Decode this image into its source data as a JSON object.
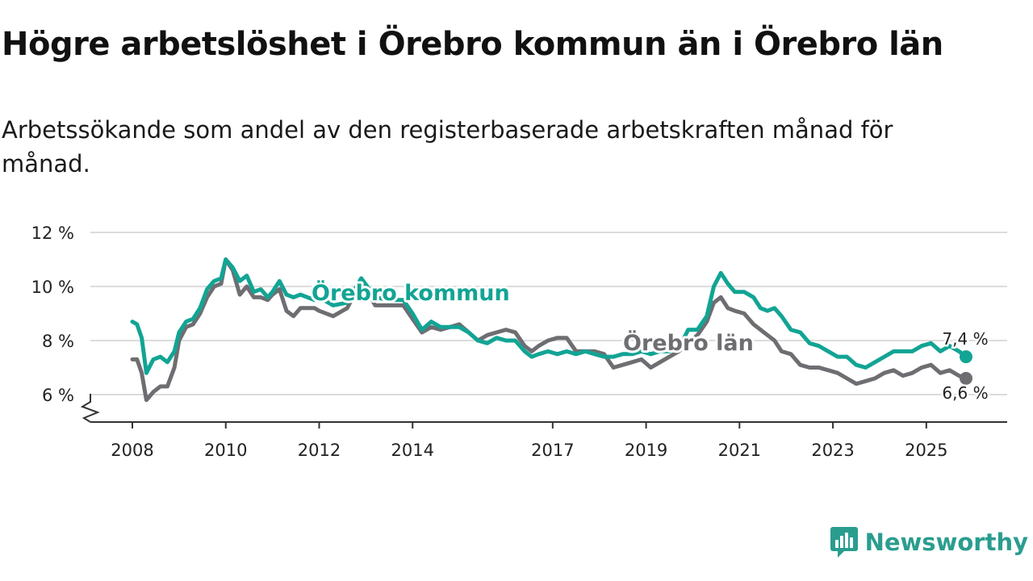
{
  "title": "Högre arbetslöshet i Örebro kommun än i Örebro län",
  "subtitle": "Arbetssökande som andel av den registerbaserade arbetskraften månad för månad.",
  "brand": {
    "name": "Newsworthy",
    "icon": "newsworthy-logo-icon",
    "color": "#2a9d8f"
  },
  "chart_data": {
    "type": "line",
    "title": "Högre arbetslöshet i Örebro kommun än i Örebro län",
    "xlabel": "",
    "ylabel": "",
    "ylim": [
      5,
      12
    ],
    "xlim": [
      2008,
      2026.2
    ],
    "y_ticks": [
      6,
      8,
      10,
      12
    ],
    "y_tick_labels": [
      "6 %",
      "8 %",
      "10 %",
      "12 %"
    ],
    "x_ticks": [
      2008,
      2010,
      2012,
      2014,
      2017,
      2019,
      2021,
      2023,
      2025
    ],
    "x_tick_labels": [
      "2008",
      "2010",
      "2012",
      "2014",
      "2017",
      "2019",
      "2021",
      "2023",
      "2025"
    ],
    "grid": true,
    "axis_break": true,
    "series": [
      {
        "name": "Örebro kommun",
        "color": "#12a494",
        "end_label": "7,4 %",
        "points": [
          [
            2008.0,
            8.7
          ],
          [
            2008.1,
            8.6
          ],
          [
            2008.2,
            8.1
          ],
          [
            2008.3,
            6.8
          ],
          [
            2008.45,
            7.3
          ],
          [
            2008.6,
            7.4
          ],
          [
            2008.75,
            7.2
          ],
          [
            2008.9,
            7.6
          ],
          [
            2009.0,
            8.3
          ],
          [
            2009.15,
            8.7
          ],
          [
            2009.3,
            8.8
          ],
          [
            2009.45,
            9.2
          ],
          [
            2009.6,
            9.9
          ],
          [
            2009.75,
            10.2
          ],
          [
            2009.9,
            10.3
          ],
          [
            2010.0,
            11.0
          ],
          [
            2010.15,
            10.7
          ],
          [
            2010.3,
            10.2
          ],
          [
            2010.45,
            10.4
          ],
          [
            2010.6,
            9.8
          ],
          [
            2010.75,
            9.9
          ],
          [
            2010.9,
            9.6
          ],
          [
            2011.0,
            9.8
          ],
          [
            2011.15,
            10.2
          ],
          [
            2011.3,
            9.7
          ],
          [
            2011.45,
            9.6
          ],
          [
            2011.6,
            9.7
          ],
          [
            2011.75,
            9.6
          ],
          [
            2011.9,
            9.5
          ],
          [
            2012.0,
            9.6
          ],
          [
            2012.3,
            9.3
          ],
          [
            2012.6,
            9.4
          ],
          [
            2012.9,
            10.3
          ],
          [
            2013.2,
            9.6
          ],
          [
            2013.5,
            9.5
          ],
          [
            2013.8,
            9.5
          ],
          [
            2014.0,
            9.0
          ],
          [
            2014.2,
            8.4
          ],
          [
            2014.4,
            8.7
          ],
          [
            2014.6,
            8.5
          ],
          [
            2014.8,
            8.5
          ],
          [
            2015.0,
            8.5
          ],
          [
            2015.2,
            8.3
          ],
          [
            2015.4,
            8.0
          ],
          [
            2015.6,
            7.9
          ],
          [
            2015.8,
            8.1
          ],
          [
            2016.0,
            8.0
          ],
          [
            2016.2,
            8.0
          ],
          [
            2016.4,
            7.6
          ],
          [
            2016.55,
            7.4
          ],
          [
            2016.7,
            7.5
          ],
          [
            2016.9,
            7.6
          ],
          [
            2017.1,
            7.5
          ],
          [
            2017.3,
            7.6
          ],
          [
            2017.5,
            7.5
          ],
          [
            2017.7,
            7.6
          ],
          [
            2017.9,
            7.5
          ],
          [
            2018.1,
            7.4
          ],
          [
            2018.3,
            7.4
          ],
          [
            2018.5,
            7.5
          ],
          [
            2018.7,
            7.5
          ],
          [
            2018.9,
            7.6
          ],
          [
            2019.1,
            7.5
          ],
          [
            2019.3,
            7.6
          ],
          [
            2019.5,
            7.6
          ],
          [
            2019.7,
            7.7
          ],
          [
            2019.9,
            8.4
          ],
          [
            2020.1,
            8.4
          ],
          [
            2020.3,
            8.9
          ],
          [
            2020.45,
            10.0
          ],
          [
            2020.6,
            10.5
          ],
          [
            2020.75,
            10.1
          ],
          [
            2020.9,
            9.8
          ],
          [
            2021.1,
            9.8
          ],
          [
            2021.3,
            9.6
          ],
          [
            2021.45,
            9.2
          ],
          [
            2021.6,
            9.1
          ],
          [
            2021.75,
            9.2
          ],
          [
            2021.9,
            8.9
          ],
          [
            2022.1,
            8.4
          ],
          [
            2022.3,
            8.3
          ],
          [
            2022.5,
            7.9
          ],
          [
            2022.7,
            7.8
          ],
          [
            2022.9,
            7.6
          ],
          [
            2023.1,
            7.4
          ],
          [
            2023.3,
            7.4
          ],
          [
            2023.5,
            7.1
          ],
          [
            2023.7,
            7.0
          ],
          [
            2023.9,
            7.2
          ],
          [
            2024.1,
            7.4
          ],
          [
            2024.3,
            7.6
          ],
          [
            2024.5,
            7.6
          ],
          [
            2024.7,
            7.6
          ],
          [
            2024.9,
            7.8
          ],
          [
            2025.1,
            7.9
          ],
          [
            2025.3,
            7.6
          ],
          [
            2025.5,
            7.8
          ],
          [
            2025.7,
            7.6
          ],
          [
            2025.85,
            7.4
          ]
        ]
      },
      {
        "name": "Örebro län",
        "color": "#6e6e72",
        "end_label": "6,6 %",
        "points": [
          [
            2008.0,
            7.3
          ],
          [
            2008.1,
            7.3
          ],
          [
            2008.2,
            6.8
          ],
          [
            2008.3,
            5.8
          ],
          [
            2008.45,
            6.1
          ],
          [
            2008.6,
            6.3
          ],
          [
            2008.75,
            6.3
          ],
          [
            2008.9,
            7.0
          ],
          [
            2009.0,
            8.0
          ],
          [
            2009.15,
            8.5
          ],
          [
            2009.3,
            8.6
          ],
          [
            2009.45,
            9.0
          ],
          [
            2009.6,
            9.6
          ],
          [
            2009.75,
            10.0
          ],
          [
            2009.9,
            10.1
          ],
          [
            2010.0,
            11.0
          ],
          [
            2010.15,
            10.6
          ],
          [
            2010.3,
            9.7
          ],
          [
            2010.45,
            10.0
          ],
          [
            2010.6,
            9.6
          ],
          [
            2010.75,
            9.6
          ],
          [
            2010.9,
            9.5
          ],
          [
            2011.0,
            9.7
          ],
          [
            2011.15,
            9.9
          ],
          [
            2011.3,
            9.1
          ],
          [
            2011.45,
            8.9
          ],
          [
            2011.6,
            9.2
          ],
          [
            2011.75,
            9.2
          ],
          [
            2011.9,
            9.2
          ],
          [
            2012.0,
            9.1
          ],
          [
            2012.3,
            8.9
          ],
          [
            2012.6,
            9.2
          ],
          [
            2012.9,
            10.2
          ],
          [
            2013.2,
            9.3
          ],
          [
            2013.5,
            9.3
          ],
          [
            2013.8,
            9.3
          ],
          [
            2014.0,
            8.8
          ],
          [
            2014.2,
            8.3
          ],
          [
            2014.4,
            8.5
          ],
          [
            2014.6,
            8.4
          ],
          [
            2014.8,
            8.5
          ],
          [
            2015.0,
            8.6
          ],
          [
            2015.2,
            8.3
          ],
          [
            2015.4,
            8.0
          ],
          [
            2015.6,
            8.2
          ],
          [
            2015.8,
            8.3
          ],
          [
            2016.0,
            8.4
          ],
          [
            2016.2,
            8.3
          ],
          [
            2016.4,
            7.8
          ],
          [
            2016.55,
            7.6
          ],
          [
            2016.7,
            7.8
          ],
          [
            2016.9,
            8.0
          ],
          [
            2017.1,
            8.1
          ],
          [
            2017.3,
            8.1
          ],
          [
            2017.5,
            7.6
          ],
          [
            2017.7,
            7.6
          ],
          [
            2017.9,
            7.6
          ],
          [
            2018.1,
            7.5
          ],
          [
            2018.3,
            7.0
          ],
          [
            2018.5,
            7.1
          ],
          [
            2018.7,
            7.2
          ],
          [
            2018.9,
            7.3
          ],
          [
            2019.1,
            7.0
          ],
          [
            2019.3,
            7.2
          ],
          [
            2019.5,
            7.4
          ],
          [
            2019.7,
            7.6
          ],
          [
            2019.9,
            7.9
          ],
          [
            2020.1,
            8.2
          ],
          [
            2020.3,
            8.7
          ],
          [
            2020.45,
            9.4
          ],
          [
            2020.6,
            9.6
          ],
          [
            2020.75,
            9.2
          ],
          [
            2020.9,
            9.1
          ],
          [
            2021.1,
            9.0
          ],
          [
            2021.3,
            8.6
          ],
          [
            2021.45,
            8.4
          ],
          [
            2021.6,
            8.2
          ],
          [
            2021.75,
            8.0
          ],
          [
            2021.9,
            7.6
          ],
          [
            2022.1,
            7.5
          ],
          [
            2022.3,
            7.1
          ],
          [
            2022.5,
            7.0
          ],
          [
            2022.7,
            7.0
          ],
          [
            2022.9,
            6.9
          ],
          [
            2023.1,
            6.8
          ],
          [
            2023.3,
            6.6
          ],
          [
            2023.5,
            6.4
          ],
          [
            2023.7,
            6.5
          ],
          [
            2023.9,
            6.6
          ],
          [
            2024.1,
            6.8
          ],
          [
            2024.3,
            6.9
          ],
          [
            2024.5,
            6.7
          ],
          [
            2024.7,
            6.8
          ],
          [
            2024.9,
            7.0
          ],
          [
            2025.1,
            7.1
          ],
          [
            2025.3,
            6.8
          ],
          [
            2025.5,
            6.9
          ],
          [
            2025.7,
            6.7
          ],
          [
            2025.85,
            6.6
          ]
        ]
      }
    ]
  }
}
